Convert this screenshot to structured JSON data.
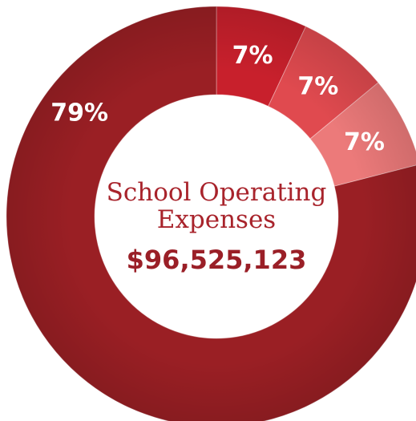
{
  "chart_data": {
    "type": "pie",
    "variant": "donut",
    "center_title_lines": [
      "School Operating",
      "Expenses"
    ],
    "center_value": "$96,525,123",
    "slices": [
      {
        "value": 7,
        "label": "7%",
        "color": "#c8202c"
      },
      {
        "value": 7,
        "label": "7%",
        "color": "#e04a4f"
      },
      {
        "value": 7,
        "label": "7%",
        "color": "#ec7a7a"
      },
      {
        "value": 79,
        "label": "79%",
        "color": "#9a1f24"
      }
    ],
    "legend": "none"
  }
}
